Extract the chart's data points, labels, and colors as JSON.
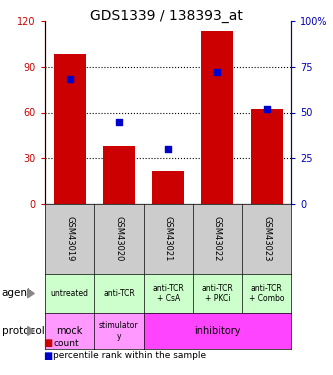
{
  "title": "GDS1339 / 138393_at",
  "samples": [
    "GSM43019",
    "GSM43020",
    "GSM43021",
    "GSM43022",
    "GSM43023"
  ],
  "counts": [
    98,
    38,
    22,
    113,
    62
  ],
  "percentiles": [
    68,
    45,
    30,
    72,
    52
  ],
  "ylim_left": [
    0,
    120
  ],
  "ylim_right": [
    0,
    100
  ],
  "yticks_left": [
    0,
    30,
    60,
    90,
    120
  ],
  "yticks_right": [
    0,
    25,
    50,
    75,
    100
  ],
  "ytick_labels_left": [
    "0",
    "30",
    "60",
    "90",
    "120"
  ],
  "ytick_labels_right": [
    "0",
    "25",
    "50",
    "75",
    "100%"
  ],
  "bar_color": "#cc0000",
  "dot_color": "#0000cc",
  "agent_labels": [
    "untreated",
    "anti-TCR",
    "anti-TCR\n+ CsA",
    "anti-TCR\n+ PKCi",
    "anti-TCR\n+ Combo"
  ],
  "agent_bg": "#ccffcc",
  "sample_bg": "#cccccc",
  "protocol_mock_bg": "#ff99ff",
  "protocol_stim_bg": "#ff99ff",
  "protocol_inhib_bg": "#ff44ff",
  "left_axis_color": "#cc0000",
  "right_axis_color": "#0000bb",
  "grid_color": "#000000",
  "legend_count_color": "#cc0000",
  "legend_pct_color": "#0000cc",
  "title_fontsize": 10,
  "tick_fontsize": 7,
  "cell_fontsize": 6,
  "label_fontsize": 7.5
}
